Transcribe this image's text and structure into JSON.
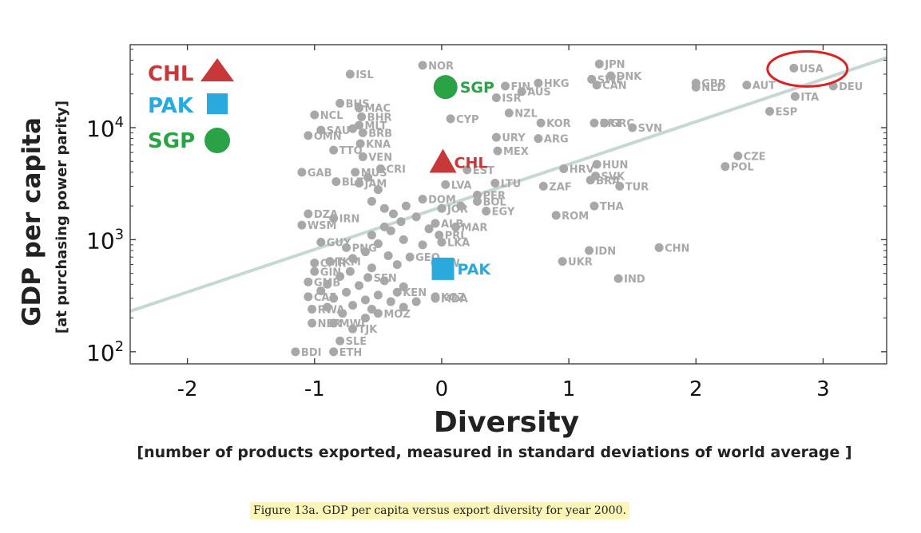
{
  "caption": "Figure 13a. GDP per capita versus export diversity for year 2000.",
  "chart_data": {
    "type": "scatter",
    "xlabel": "Diversity",
    "xlabel_sub": "[number of products exported, measured in standard deviations of world average ]",
    "ylabel": "GDP per capita",
    "ylabel_sub": "[at purchasing power parity]",
    "x_ticks": [
      {
        "v": -2,
        "t": "-2"
      },
      {
        "v": -1,
        "t": "-1"
      },
      {
        "v": 0,
        "t": "0"
      },
      {
        "v": 1,
        "t": "1"
      },
      {
        "v": 2,
        "t": "2"
      },
      {
        "v": 3,
        "t": "3"
      }
    ],
    "y_ticks": [
      {
        "v": 100,
        "t": "10",
        "sup": "2"
      },
      {
        "v": 1000,
        "t": "10",
        "sup": "3"
      },
      {
        "v": 10000,
        "t": "10",
        "sup": "4"
      }
    ],
    "xlim": [
      -2.45,
      3.5
    ],
    "ylim": [
      78,
      55000
    ],
    "yscale": "log",
    "grid": false,
    "legend_position": "top-left",
    "trend_line": {
      "x": [
        -2.45,
        3.5
      ],
      "y": [
        230,
        42000
      ],
      "color": "#c5d8d5"
    },
    "legend": [
      {
        "label": "CHL",
        "shape": "triangle",
        "color": "#c8373a"
      },
      {
        "label": "PAK",
        "shape": "square",
        "color": "#2aa9dc"
      },
      {
        "label": "SGP",
        "shape": "circle",
        "color": "#2aa347"
      }
    ],
    "highlighted": [
      {
        "label": "SGP",
        "x": 0.03,
        "y": 23000,
        "shape": "circle",
        "color": "#2aa347"
      },
      {
        "label": "CHL",
        "x": 0.01,
        "y": 4900,
        "shape": "triangle",
        "color": "#c8373a"
      },
      {
        "label": "PAK",
        "x": 0.01,
        "y": 550,
        "shape": "square",
        "color": "#2aa9dc"
      }
    ],
    "circled": {
      "label": "USA",
      "color": "#e02020"
    },
    "points": [
      {
        "label": "USA",
        "x": 2.77,
        "y": 34000
      },
      {
        "label": "DEU",
        "x": 3.08,
        "y": 23500
      },
      {
        "label": "ITA",
        "x": 2.78,
        "y": 19000
      },
      {
        "label": "ESP",
        "x": 2.58,
        "y": 14000
      },
      {
        "label": "AUT",
        "x": 2.4,
        "y": 24000
      },
      {
        "label": "GBR",
        "x": 2.0,
        "y": 25000
      },
      {
        "label": "NLD",
        "x": 2.0,
        "y": 23000
      },
      {
        "label": "JPN",
        "x": 1.24,
        "y": 37000
      },
      {
        "label": "SWE",
        "x": 1.18,
        "y": 27000
      },
      {
        "label": "DNK",
        "x": 1.33,
        "y": 29000
      },
      {
        "label": "CAN",
        "x": 1.22,
        "y": 24000
      },
      {
        "label": "HKG",
        "x": 0.76,
        "y": 25000
      },
      {
        "label": "FIN",
        "x": 0.5,
        "y": 23500
      },
      {
        "label": "AUS",
        "x": 0.63,
        "y": 21000
      },
      {
        "label": "ISR",
        "x": 0.43,
        "y": 18500
      },
      {
        "label": "NZL",
        "x": 0.53,
        "y": 13500
      },
      {
        "label": "PRT",
        "x": 1.2,
        "y": 11000
      },
      {
        "label": "GRC",
        "x": 1.28,
        "y": 11000
      },
      {
        "label": "SVN",
        "x": 1.5,
        "y": 10000
      },
      {
        "label": "KOR",
        "x": 0.78,
        "y": 11000
      },
      {
        "label": "ARG",
        "x": 0.76,
        "y": 8000
      },
      {
        "label": "URY",
        "x": 0.43,
        "y": 8200
      },
      {
        "label": "MEX",
        "x": 0.44,
        "y": 6200
      },
      {
        "label": "CZE",
        "x": 2.33,
        "y": 5600
      },
      {
        "label": "POL",
        "x": 2.23,
        "y": 4500
      },
      {
        "label": "HUN",
        "x": 1.22,
        "y": 4700
      },
      {
        "label": "HRV",
        "x": 0.96,
        "y": 4300
      },
      {
        "label": "SVK",
        "x": 1.21,
        "y": 3700
      },
      {
        "label": "BRA",
        "x": 1.17,
        "y": 3400
      },
      {
        "label": "TUR",
        "x": 1.4,
        "y": 3000
      },
      {
        "label": "ZAF",
        "x": 0.8,
        "y": 3000
      },
      {
        "label": "THA",
        "x": 1.2,
        "y": 2000
      },
      {
        "label": "ROM",
        "x": 0.9,
        "y": 1650
      },
      {
        "label": "CHN",
        "x": 1.71,
        "y": 850
      },
      {
        "label": "IDN",
        "x": 1.16,
        "y": 800
      },
      {
        "label": "UKR",
        "x": 0.95,
        "y": 640
      },
      {
        "label": "IND",
        "x": 1.39,
        "y": 450
      },
      {
        "label": "LTU",
        "x": 0.42,
        "y": 3200
      },
      {
        "label": "EST",
        "x": 0.2,
        "y": 4200
      },
      {
        "label": "LVA",
        "x": 0.03,
        "y": 3100
      },
      {
        "label": "PER",
        "x": 0.28,
        "y": 2500
      },
      {
        "label": "BOL",
        "x": 0.28,
        "y": 2200
      },
      {
        "label": "EGY",
        "x": 0.35,
        "y": 1800
      },
      {
        "label": "JOR",
        "x": 0.0,
        "y": 1900
      },
      {
        "label": "MAR",
        "x": 0.11,
        "y": 1300
      },
      {
        "label": "ALB",
        "x": -0.05,
        "y": 1400
      },
      {
        "label": "LKA",
        "x": 0.0,
        "y": 950
      },
      {
        "label": "PRL",
        "x": -0.02,
        "y": 1100
      },
      {
        "label": "GEO",
        "x": -0.25,
        "y": 700
      },
      {
        "label": "MDA",
        "x": -0.05,
        "y": 300
      },
      {
        "label": "DOM",
        "x": -0.15,
        "y": 2300
      },
      {
        "label": "CYP",
        "x": 0.07,
        "y": 12000
      },
      {
        "label": "NOR",
        "x": -0.15,
        "y": 36000
      },
      {
        "label": "ISL",
        "x": -0.72,
        "y": 30000
      },
      {
        "label": "BHS",
        "x": -0.8,
        "y": 16500
      },
      {
        "label": "MAC",
        "x": -0.65,
        "y": 15000
      },
      {
        "label": "BHR",
        "x": -0.63,
        "y": 12500
      },
      {
        "label": "MLT",
        "x": -0.65,
        "y": 10500
      },
      {
        "label": "BRB",
        "x": -0.62,
        "y": 9000
      },
      {
        "label": "KNA",
        "x": -0.64,
        "y": 7200
      },
      {
        "label": "VEN",
        "x": -0.62,
        "y": 5500
      },
      {
        "label": "CRI",
        "x": -0.48,
        "y": 4300
      },
      {
        "label": "MUS",
        "x": -0.68,
        "y": 4000
      },
      {
        "label": "JAM",
        "x": -0.65,
        "y": 3200
      },
      {
        "label": "NCL",
        "x": -1.0,
        "y": 13000
      },
      {
        "label": "SAU",
        "x": -0.95,
        "y": 9500
      },
      {
        "label": "OMN",
        "x": -1.05,
        "y": 8500
      },
      {
        "label": "TTO",
        "x": -0.85,
        "y": 6300
      },
      {
        "label": "GAB",
        "x": -1.1,
        "y": 4000
      },
      {
        "label": "BLZ",
        "x": -0.83,
        "y": 3300
      },
      {
        "label": "DZA",
        "x": -1.05,
        "y": 1700
      },
      {
        "label": "WSM",
        "x": -1.1,
        "y": 1350
      },
      {
        "label": "IRN",
        "x": -0.85,
        "y": 1550
      },
      {
        "label": "GUY",
        "x": -0.95,
        "y": 950
      },
      {
        "label": "PNG",
        "x": -0.75,
        "y": 850
      },
      {
        "label": "CMR",
        "x": -1.0,
        "y": 620
      },
      {
        "label": "TKM",
        "x": -0.88,
        "y": 640
      },
      {
        "label": "GIN",
        "x": -1.0,
        "y": 520
      },
      {
        "label": "GMB",
        "x": -1.05,
        "y": 420
      },
      {
        "label": "SEN",
        "x": -0.58,
        "y": 460
      },
      {
        "label": "KEN",
        "x": -0.35,
        "y": 340
      },
      {
        "label": "MOZ",
        "x": -0.5,
        "y": 220
      },
      {
        "label": "CAF",
        "x": -1.05,
        "y": 310
      },
      {
        "label": "RWA",
        "x": -1.02,
        "y": 240
      },
      {
        "label": "NER",
        "x": -1.02,
        "y": 180
      },
      {
        "label": "MWI",
        "x": -0.85,
        "y": 180
      },
      {
        "label": "TJK",
        "x": -0.7,
        "y": 160
      },
      {
        "label": "SLE",
        "x": -0.8,
        "y": 125
      },
      {
        "label": "ETH",
        "x": -0.85,
        "y": 100
      },
      {
        "label": "BDI",
        "x": -1.15,
        "y": 100
      },
      {
        "label": "ZW",
        "x": -0.05,
        "y": 620
      },
      {
        "label": "KGZ",
        "x": -0.05,
        "y": 310
      },
      {
        "label": "",
        "x": -0.55,
        "y": 2200
      },
      {
        "label": "",
        "x": -0.45,
        "y": 1900
      },
      {
        "label": "",
        "x": -0.38,
        "y": 1700
      },
      {
        "label": "",
        "x": -0.32,
        "y": 1450
      },
      {
        "label": "",
        "x": -0.4,
        "y": 1200
      },
      {
        "label": "",
        "x": -0.55,
        "y": 1100
      },
      {
        "label": "",
        "x": -0.3,
        "y": 1000
      },
      {
        "label": "",
        "x": -0.5,
        "y": 920
      },
      {
        "label": "",
        "x": -0.6,
        "y": 780
      },
      {
        "label": "",
        "x": -0.42,
        "y": 720
      },
      {
        "label": "",
        "x": -0.7,
        "y": 680
      },
      {
        "label": "",
        "x": -0.35,
        "y": 600
      },
      {
        "label": "",
        "x": -0.55,
        "y": 560
      },
      {
        "label": "",
        "x": -0.72,
        "y": 520
      },
      {
        "label": "",
        "x": -0.8,
        "y": 470
      },
      {
        "label": "",
        "x": -0.45,
        "y": 430
      },
      {
        "label": "",
        "x": -0.9,
        "y": 400
      },
      {
        "label": "",
        "x": -0.65,
        "y": 390
      },
      {
        "label": "",
        "x": -0.3,
        "y": 380
      },
      {
        "label": "",
        "x": -0.95,
        "y": 350
      },
      {
        "label": "",
        "x": -0.75,
        "y": 340
      },
      {
        "label": "",
        "x": -0.5,
        "y": 320
      },
      {
        "label": "",
        "x": -0.85,
        "y": 300
      },
      {
        "label": "",
        "x": -0.6,
        "y": 290
      },
      {
        "label": "",
        "x": -0.4,
        "y": 280
      },
      {
        "label": "",
        "x": -0.7,
        "y": 260
      },
      {
        "label": "",
        "x": -0.9,
        "y": 250
      },
      {
        "label": "",
        "x": -0.55,
        "y": 240
      },
      {
        "label": "",
        "x": -0.3,
        "y": 250
      },
      {
        "label": "",
        "x": -0.78,
        "y": 220
      },
      {
        "label": "",
        "x": -0.6,
        "y": 200
      },
      {
        "label": "",
        "x": -0.2,
        "y": 280
      },
      {
        "label": "",
        "x": -0.15,
        "y": 900
      },
      {
        "label": "",
        "x": -0.1,
        "y": 1250
      },
      {
        "label": "",
        "x": -0.2,
        "y": 1600
      },
      {
        "label": "",
        "x": 0.15,
        "y": 2000
      },
      {
        "label": "",
        "x": -0.28,
        "y": 2000
      },
      {
        "label": "",
        "x": -0.5,
        "y": 2800
      },
      {
        "label": "",
        "x": -0.58,
        "y": 3600
      },
      {
        "label": "",
        "x": -0.7,
        "y": 9800
      },
      {
        "label": "",
        "x": -0.45,
        "y": 1300
      }
    ]
  }
}
